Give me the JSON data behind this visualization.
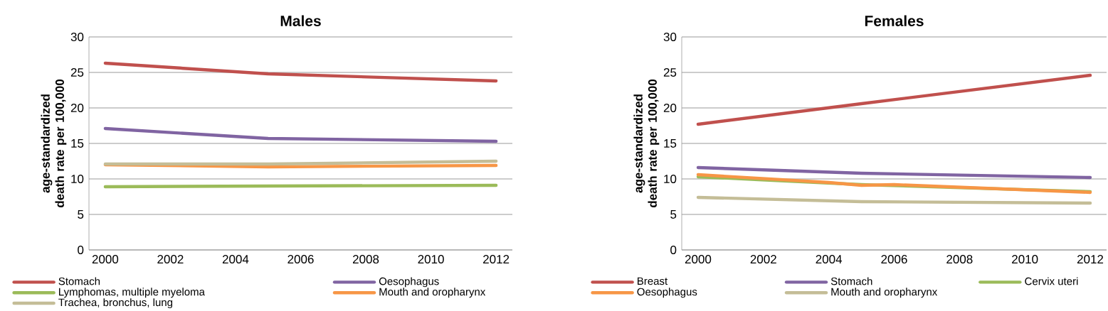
{
  "chart_data": [
    {
      "type": "line",
      "title": "Males",
      "ylabel": "age-standardized death rate per 100,000",
      "xlim": [
        1999.5,
        2012.5
      ],
      "xticks": [
        2000,
        2002,
        2004,
        2006,
        2008,
        2010,
        2012
      ],
      "ylim": [
        0,
        30
      ],
      "yticks": [
        0,
        5,
        10,
        15,
        20,
        25,
        30
      ],
      "grid": "y",
      "legend": "bottom",
      "series": [
        {
          "name": "Stomach",
          "color": "#c0504d",
          "x": [
            2000,
            2005,
            2012
          ],
          "values": [
            26.3,
            24.8,
            23.8
          ]
        },
        {
          "name": "Oesophagus",
          "color": "#8064a2",
          "x": [
            2000,
            2005,
            2012
          ],
          "values": [
            17.1,
            15.7,
            15.3
          ]
        },
        {
          "name": "Lymphomas, multiple myeloma",
          "color": "#9bbb59",
          "x": [
            2000,
            2005,
            2012
          ],
          "values": [
            8.9,
            9.0,
            9.1
          ]
        },
        {
          "name": "Mouth and oropharynx",
          "color": "#f79646",
          "x": [
            2000,
            2005,
            2012
          ],
          "values": [
            12.0,
            11.7,
            11.9
          ]
        },
        {
          "name": "Trachea, bronchus, lung",
          "color": "#c4bd97",
          "x": [
            2000,
            2005,
            2012
          ],
          "values": [
            12.1,
            12.1,
            12.5
          ]
        }
      ]
    },
    {
      "type": "line",
      "title": "Females",
      "ylabel": "age-standardized death rate per 100,000",
      "xlim": [
        1999.5,
        2012.5
      ],
      "xticks": [
        2000,
        2002,
        2004,
        2006,
        2008,
        2010,
        2012
      ],
      "ylim": [
        0,
        30
      ],
      "yticks": [
        0,
        5,
        10,
        15,
        20,
        25,
        30
      ],
      "grid": "y",
      "legend": "bottom",
      "series": [
        {
          "name": "Breast",
          "color": "#c0504d",
          "x": [
            2000,
            2005,
            2012
          ],
          "values": [
            17.7,
            20.6,
            24.6
          ]
        },
        {
          "name": "Stomach",
          "color": "#8064a2",
          "x": [
            2000,
            2005,
            2012
          ],
          "values": [
            11.6,
            10.8,
            10.2
          ]
        },
        {
          "name": "Cervix uteri",
          "color": "#9bbb59",
          "x": [
            2000,
            2005,
            2012
          ],
          "values": [
            10.3,
            9.2,
            8.2
          ]
        },
        {
          "name": "Oesophagus",
          "color": "#f79646",
          "x": [
            2000,
            2004,
            2005,
            2006,
            2012
          ],
          "values": [
            10.6,
            9.5,
            9.1,
            9.2,
            8.1
          ]
        },
        {
          "name": "Mouth and oropharynx",
          "color": "#c4bd97",
          "x": [
            2000,
            2005,
            2012
          ],
          "values": [
            7.4,
            6.8,
            6.6
          ]
        }
      ]
    }
  ]
}
